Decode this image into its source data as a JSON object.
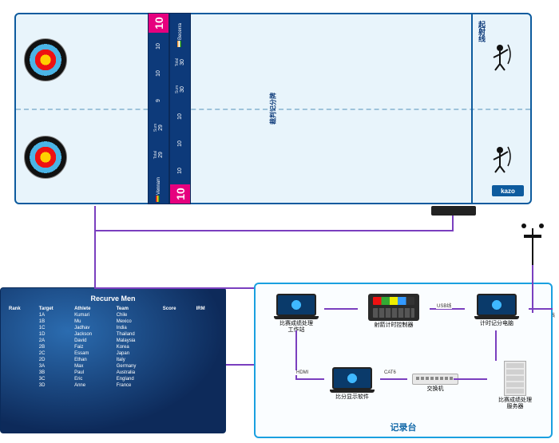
{
  "field": {
    "scoreboard_label": "裁判记分牌",
    "shooting_line_label": "起射线",
    "logo_text": "kazo",
    "player1": {
      "bigscore": "10",
      "name": "Vennam",
      "flag": "gh",
      "arrows": [
        "10",
        "10",
        "9"
      ],
      "sum_label": "Sum",
      "sum": "29",
      "total_label": "Total",
      "total": "29"
    },
    "player2": {
      "bigscore": "10",
      "name": "Becerra",
      "flag": "in",
      "arrows": [
        "10",
        "10",
        "10"
      ],
      "sum_label": "Sum",
      "sum": "30",
      "total_label": "Total",
      "total": "30"
    }
  },
  "connections": {
    "hdmi": "HDMI",
    "usb": "USB线",
    "cat6": "CAT6",
    "signal": "信号线"
  },
  "screen": {
    "title": "Recurve Men",
    "columns": [
      "Rank",
      "Target",
      "Athlete",
      "Team",
      "Score",
      "IRM"
    ],
    "rows": [
      [
        "",
        "1A",
        "Kumari",
        "Chile",
        "",
        ""
      ],
      [
        "",
        "1B",
        "Mu",
        "Mexico",
        "",
        ""
      ],
      [
        "",
        "1C",
        "Jadhav",
        "India",
        "",
        ""
      ],
      [
        "",
        "1D",
        "Jackson",
        "Thailand",
        "",
        ""
      ],
      [
        "",
        "2A",
        "David",
        "Malaysia",
        "",
        ""
      ],
      [
        "",
        "2B",
        "Faiz",
        "Korea",
        "",
        ""
      ],
      [
        "",
        "2C",
        "Essam",
        "Japan",
        "",
        ""
      ],
      [
        "",
        "2D",
        "Ethan",
        "Italy",
        "",
        ""
      ],
      [
        "",
        "3A",
        "Max",
        "Germany",
        "",
        ""
      ],
      [
        "",
        "3B",
        "Paul",
        "Australia",
        "",
        ""
      ],
      [
        "",
        "3C",
        "Eric",
        "England",
        "",
        ""
      ],
      [
        "",
        "3D",
        "Anne",
        "France",
        "",
        ""
      ]
    ]
  },
  "desk": {
    "title": "记录台",
    "dev_workstation": "比赛成绩处理\n工作站",
    "dev_controller": "射箭计时控制器",
    "dev_timing_pc": "计时记分电脑",
    "dev_display_sw": "比分显示软件",
    "dev_switch": "交换机",
    "dev_server": "比赛成绩处理\n服务器"
  }
}
